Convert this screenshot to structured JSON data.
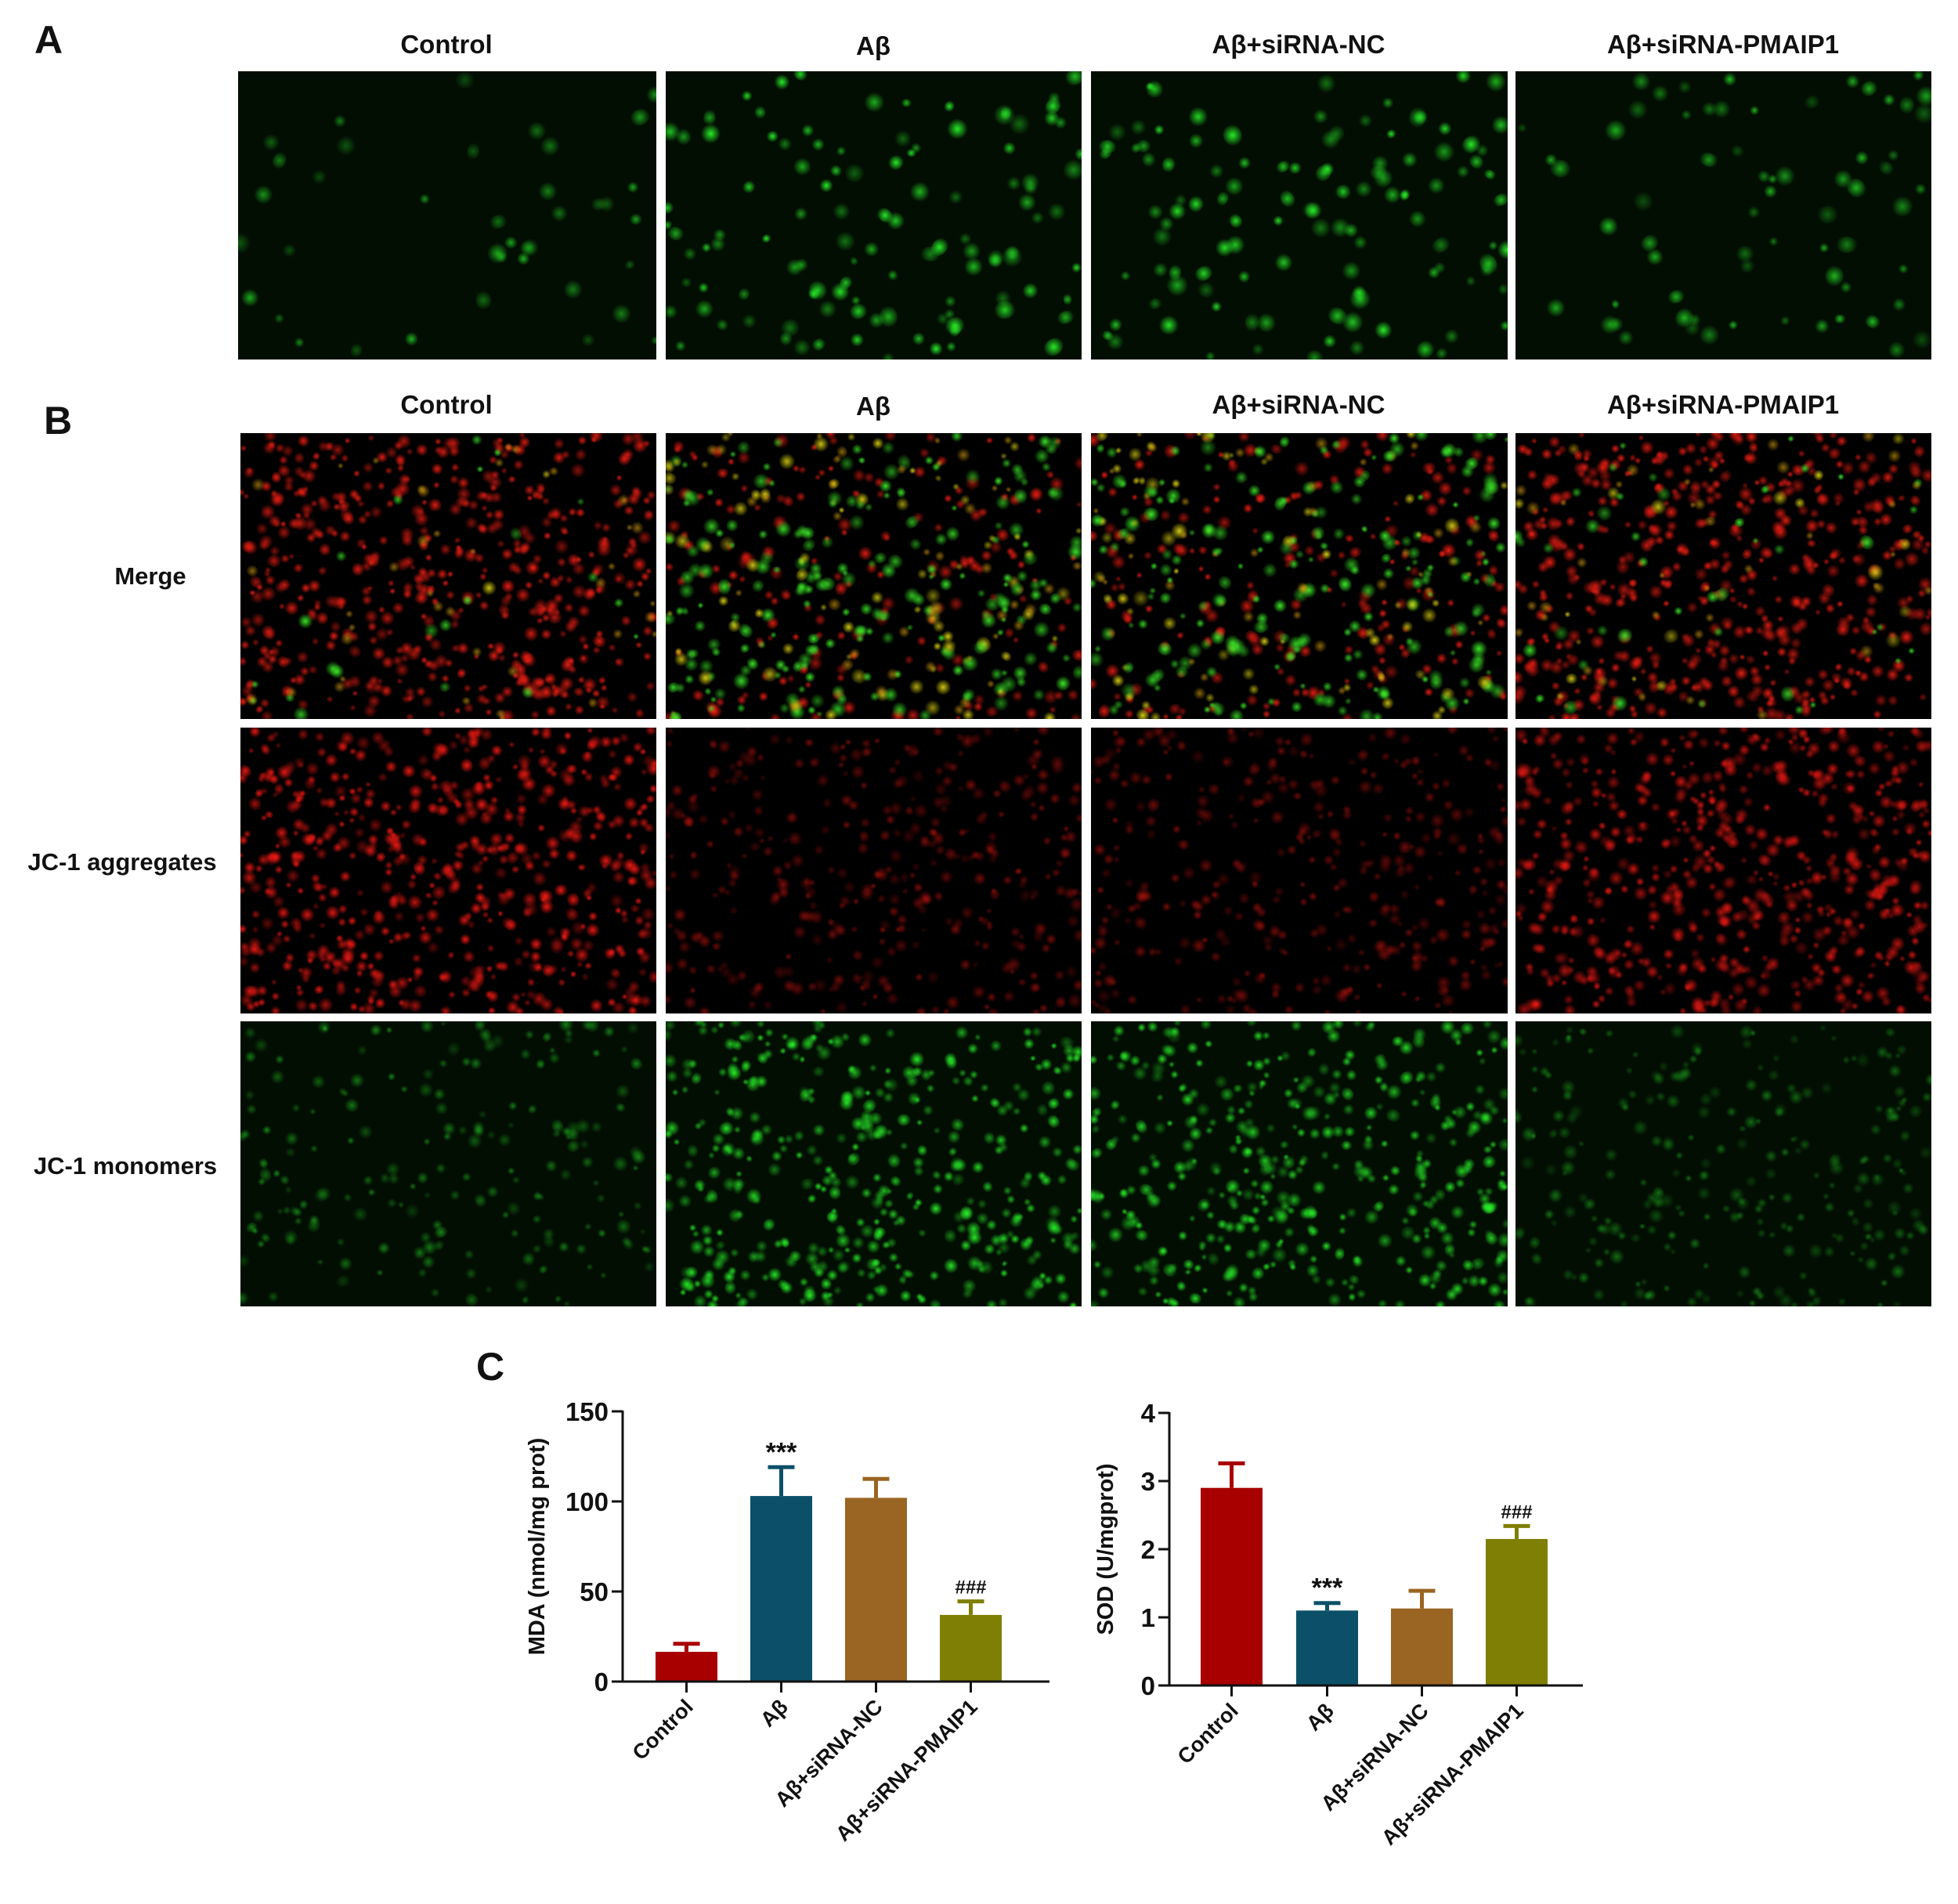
{
  "panels": {
    "A": {
      "letter": "A",
      "columns": [
        "Control",
        "Aβ",
        "Aβ+siRNA-NC",
        "Aβ+siRNA-PMAIP1"
      ],
      "images": [
        {
          "channel": "green",
          "density": 0.35,
          "brightness": 0.75
        },
        {
          "channel": "green",
          "density": 1.0,
          "brightness": 1.0
        },
        {
          "channel": "green",
          "density": 1.0,
          "brightness": 1.0
        },
        {
          "channel": "green",
          "density": 0.6,
          "brightness": 0.8
        }
      ]
    },
    "B": {
      "letter": "B",
      "columns": [
        "Control",
        "Aβ",
        "Aβ+siRNA-NC",
        "Aβ+siRNA-PMAIP1"
      ],
      "rows": [
        {
          "label": "Merge",
          "images": [
            {
              "channel": "merge",
              "red": 1.0,
              "green": 0.08
            },
            {
              "channel": "merge",
              "red": 0.35,
              "green": 1.0
            },
            {
              "channel": "merge",
              "red": 0.4,
              "green": 0.9
            },
            {
              "channel": "merge",
              "red": 0.95,
              "green": 0.2
            }
          ]
        },
        {
          "label": "JC-1 aggregates",
          "images": [
            {
              "channel": "red",
              "density": 1.0,
              "brightness": 1.0
            },
            {
              "channel": "red",
              "density": 0.6,
              "brightness": 0.5
            },
            {
              "channel": "red",
              "density": 0.6,
              "brightness": 0.5
            },
            {
              "channel": "red",
              "density": 1.0,
              "brightness": 0.9
            }
          ]
        },
        {
          "label": "JC-1 monomers",
          "images": [
            {
              "channel": "green",
              "density": 0.45,
              "brightness": 0.55
            },
            {
              "channel": "green",
              "density": 1.0,
              "brightness": 1.0
            },
            {
              "channel": "green",
              "density": 1.0,
              "brightness": 0.95
            },
            {
              "channel": "green",
              "density": 0.6,
              "brightness": 0.45
            }
          ]
        }
      ]
    },
    "C": {
      "letter": "C"
    }
  },
  "colors": {
    "Control": "#a80000",
    "Aβ": "#0b5068",
    "Aβ+siRNA-NC": "#9a6422",
    "Aβ+siRNA-PMAIP1": "#7f7f05"
  },
  "chart_data": [
    {
      "type": "bar",
      "title": "",
      "xlabel": "",
      "ylabel": "MDA (nmol/mg prot)",
      "categories": [
        "Control",
        "Aβ",
        "Aβ+siRNA-NC",
        "Aβ+siRNA-PMAIP1"
      ],
      "values": [
        16.5,
        103,
        102,
        37
      ],
      "errors": [
        4.5,
        16,
        10.5,
        7.5
      ],
      "annotations": [
        "",
        "***",
        "",
        "###"
      ],
      "ylim": [
        0,
        150
      ],
      "yticks": [
        0,
        50,
        100,
        150
      ],
      "grid": false,
      "legend": "none"
    },
    {
      "type": "bar",
      "title": "",
      "xlabel": "",
      "ylabel": "SOD (U/mgprot)",
      "categories": [
        "Control",
        "Aβ",
        "Aβ+siRNA-NC",
        "Aβ+siRNA-PMAIP1"
      ],
      "values": [
        2.9,
        1.1,
        1.13,
        2.15
      ],
      "errors": [
        0.36,
        0.11,
        0.26,
        0.19
      ],
      "annotations": [
        "",
        "***",
        "",
        "###"
      ],
      "ylim": [
        0,
        4
      ],
      "yticks": [
        0,
        1,
        2,
        3,
        4
      ],
      "grid": false,
      "legend": "none"
    }
  ]
}
